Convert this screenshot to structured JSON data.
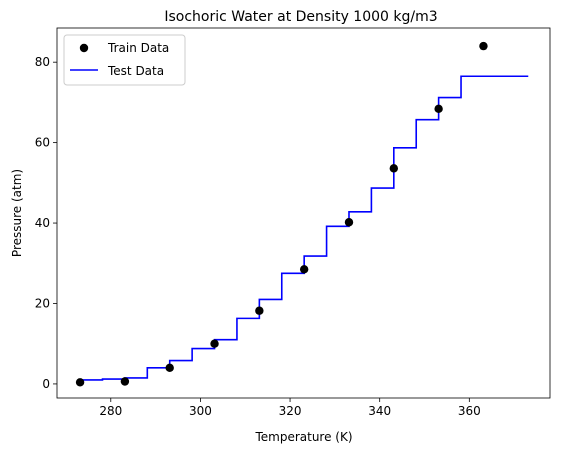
{
  "chart_data": {
    "type": "scatter+step",
    "title": "Isochoric Water at Density 1000 kg/m3",
    "xlabel": "Temperature (K)",
    "ylabel": "Pressure (atm)",
    "xlim": [
      268.0,
      378.0
    ],
    "ylim": [
      -3.5,
      88.5
    ],
    "xticks": [
      280,
      300,
      320,
      340,
      360
    ],
    "yticks": [
      0,
      20,
      40,
      60,
      80
    ],
    "legend_position": "upper-left",
    "series": [
      {
        "name": "Train Data",
        "kind": "scatter",
        "color": "#000000",
        "x": [
          273.15,
          283.15,
          293.15,
          303.15,
          313.15,
          323.15,
          333.15,
          343.15,
          353.15,
          363.15
        ],
        "y": [
          0.4,
          0.6,
          4.0,
          10.0,
          18.2,
          28.5,
          40.2,
          53.6,
          68.4,
          84.0
        ]
      },
      {
        "name": "Test Data",
        "kind": "step",
        "color": "#0000ff",
        "x": [
          273.15,
          278.15,
          283.15,
          288.15,
          293.15,
          298.15,
          303.15,
          308.15,
          313.15,
          318.15,
          323.15,
          328.15,
          333.15,
          338.15,
          343.15,
          348.15,
          353.15,
          358.15,
          363.15,
          368.15,
          373.15
        ],
        "y": [
          1.0,
          1.2,
          1.5,
          4.0,
          5.8,
          8.8,
          11.0,
          16.3,
          21.0,
          27.5,
          31.8,
          39.2,
          42.8,
          48.7,
          58.7,
          65.7,
          71.2,
          76.5,
          76.5,
          76.5,
          76.5
        ]
      }
    ]
  }
}
